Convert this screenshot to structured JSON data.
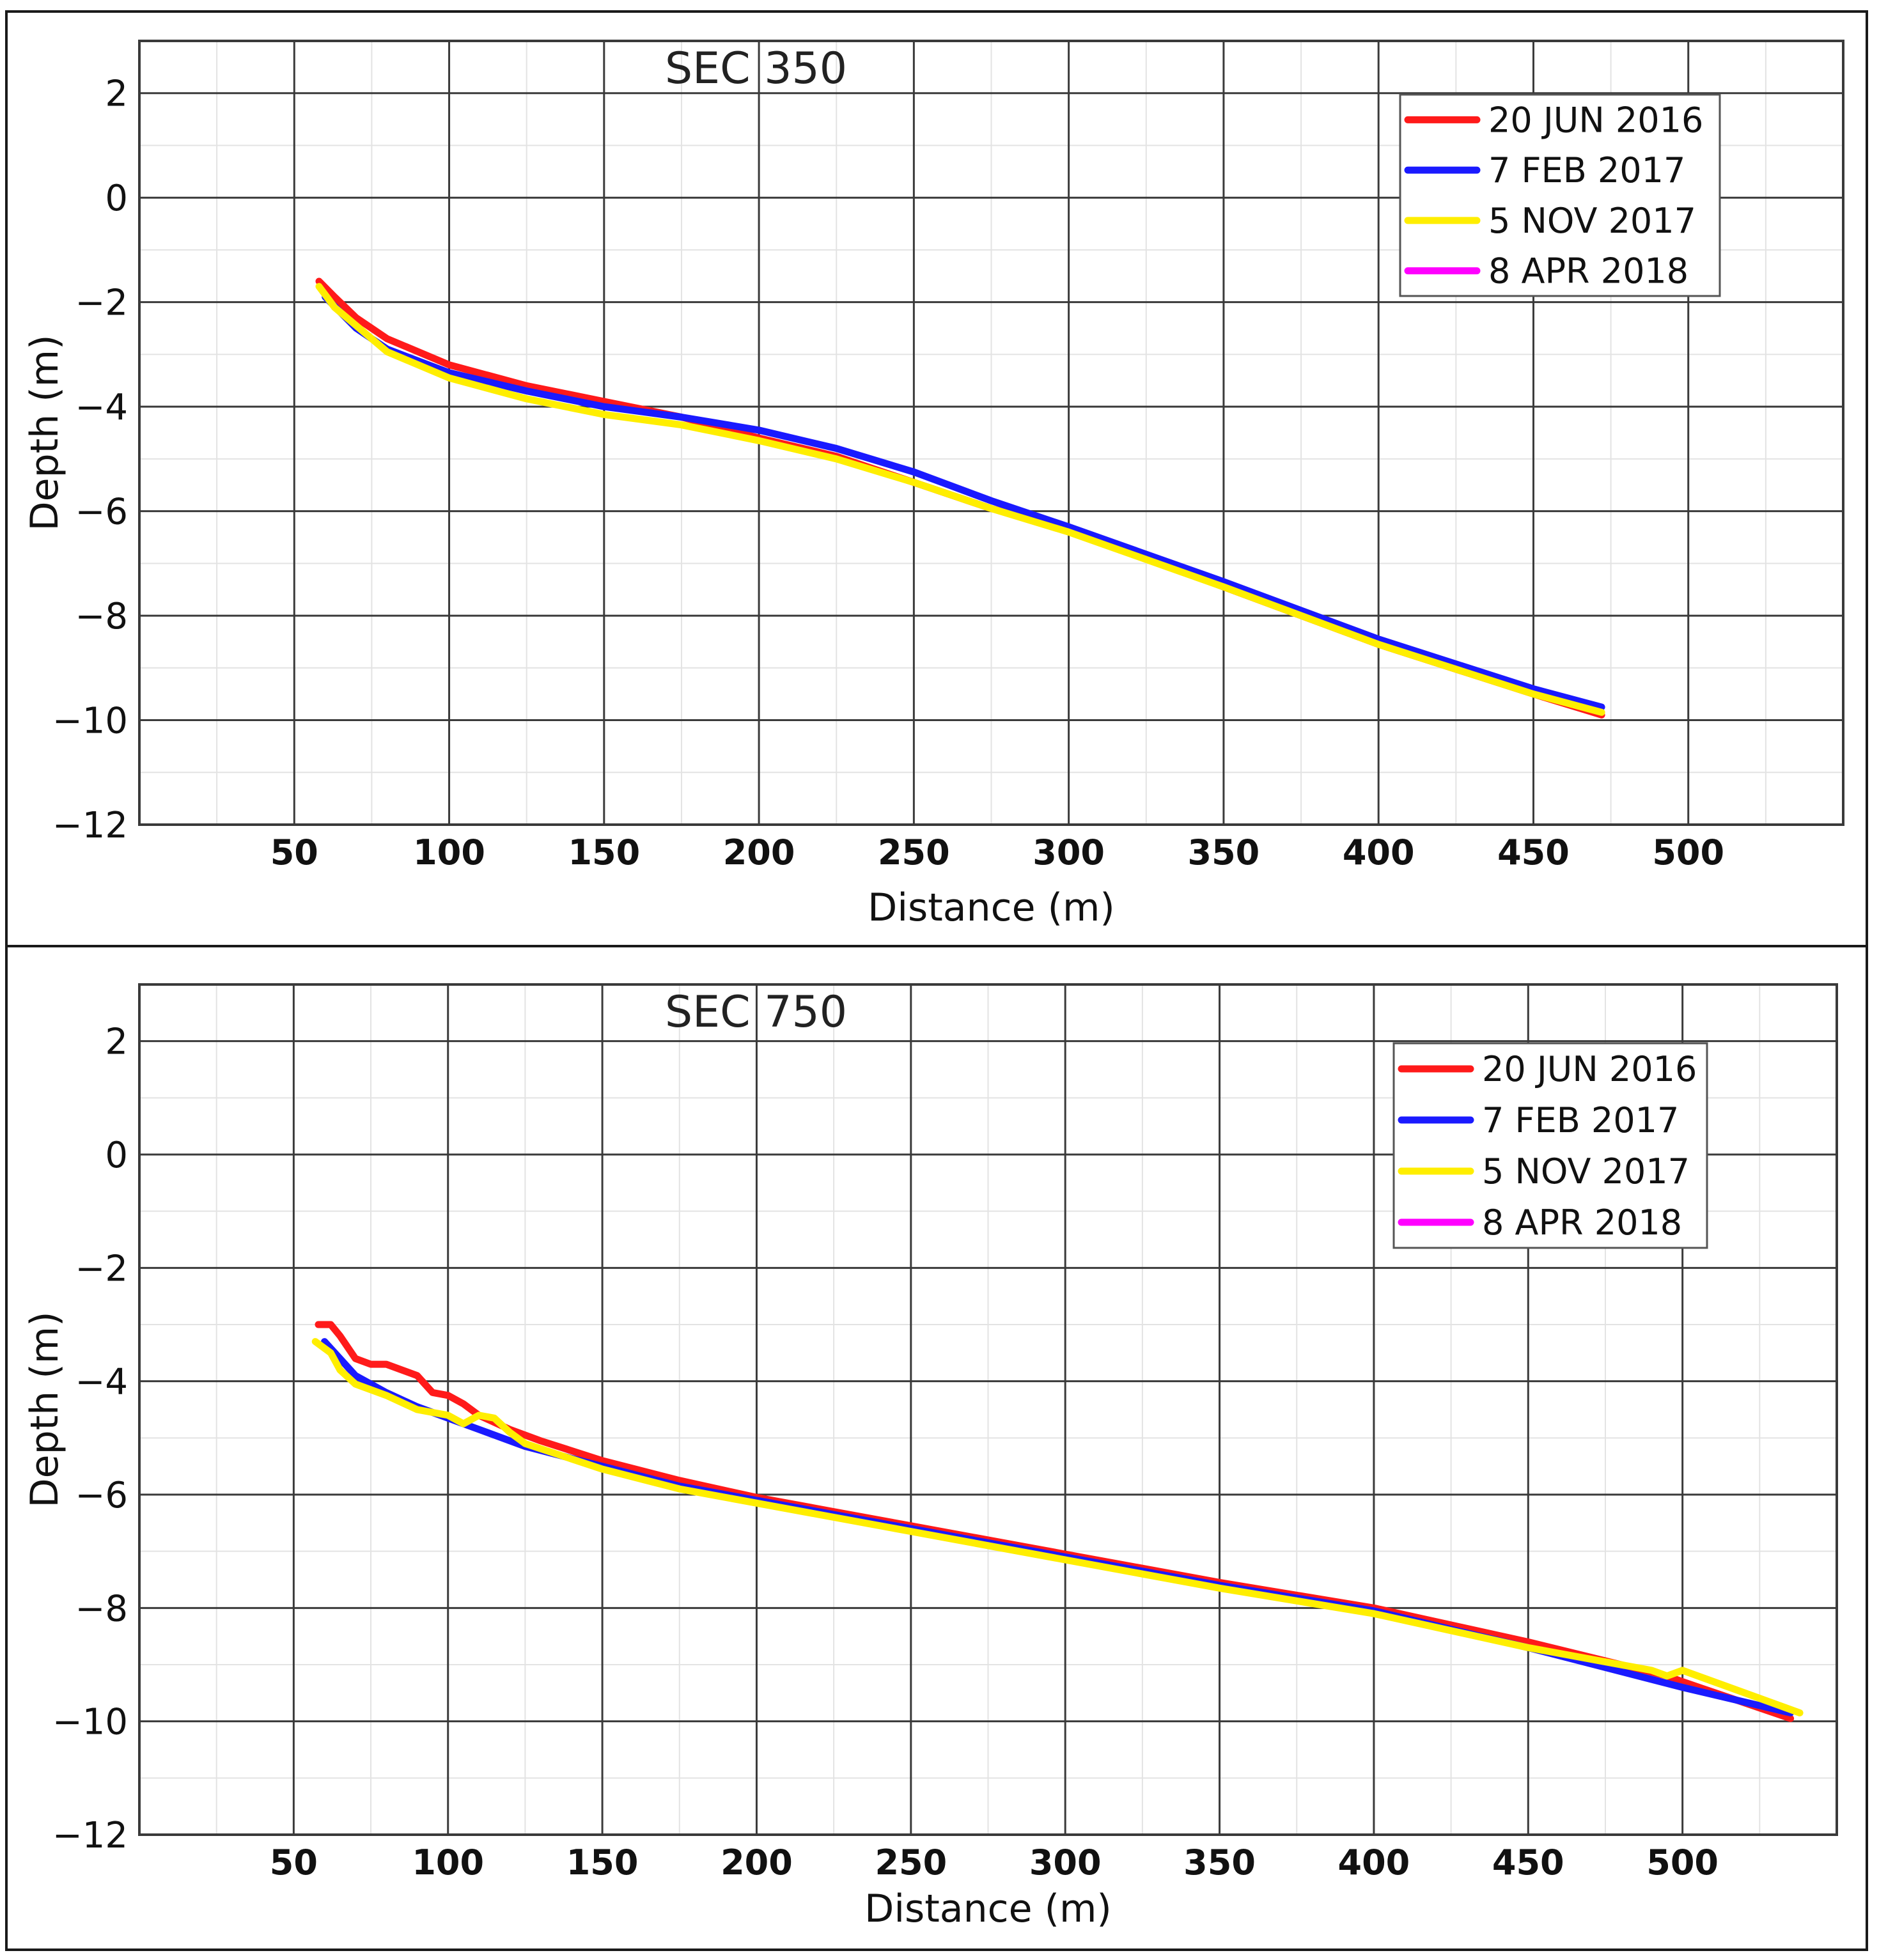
{
  "chart_data": [
    {
      "type": "line",
      "title": "SEC  350",
      "xlabel": "Distance (m)",
      "ylabel": "Depth (m)",
      "xlim": [
        0,
        550
      ],
      "ylim": [
        -12,
        3
      ],
      "xticks": [
        "50",
        "100",
        "150",
        "200",
        "250",
        "300",
        "350",
        "400",
        "450",
        "500"
      ],
      "yticks": [
        "2",
        "0",
        "−2",
        "−4",
        "−6",
        "−8",
        "−10",
        "−12"
      ],
      "grid": true,
      "legend_position": "top-right",
      "series": [
        {
          "name": "20 JUN 2016",
          "color": "#ff1a1a",
          "x": [
            58,
            63,
            70,
            80,
            100,
            125,
            150,
            175,
            200,
            225,
            250,
            275,
            300,
            350,
            400,
            450,
            472
          ],
          "y": [
            -1.6,
            -1.9,
            -2.3,
            -2.7,
            -3.2,
            -3.6,
            -3.9,
            -4.2,
            -4.6,
            -4.95,
            -5.45,
            -5.95,
            -6.35,
            -7.45,
            -8.55,
            -9.5,
            -9.9
          ]
        },
        {
          "name": "7 FEB 2017",
          "color": "#1a1aff",
          "x": [
            60,
            65,
            70,
            80,
            100,
            125,
            150,
            175,
            200,
            225,
            250,
            275,
            300,
            350,
            400,
            450,
            472
          ],
          "y": [
            -1.9,
            -2.2,
            -2.5,
            -2.9,
            -3.35,
            -3.7,
            -4.0,
            -4.2,
            -4.45,
            -4.8,
            -5.25,
            -5.8,
            -6.3,
            -7.35,
            -8.45,
            -9.4,
            -9.75
          ]
        },
        {
          "name": "5 NOV 2017",
          "color": "#ffee00",
          "x": [
            58,
            63,
            70,
            80,
            100,
            125,
            150,
            175,
            200,
            225,
            250,
            275,
            300,
            350,
            400,
            450,
            472
          ],
          "y": [
            -1.7,
            -2.1,
            -2.45,
            -2.95,
            -3.45,
            -3.85,
            -4.15,
            -4.35,
            -4.65,
            -5.0,
            -5.45,
            -5.95,
            -6.4,
            -7.45,
            -8.55,
            -9.5,
            -9.85
          ]
        },
        {
          "name": "8 APR 2018",
          "color": "#ff00ff",
          "x": [],
          "y": []
        }
      ]
    },
    {
      "type": "line",
      "title": "SEC  750",
      "xlabel": "Distance (m)",
      "ylabel": "Depth (m)",
      "xlim": [
        0,
        550
      ],
      "ylim": [
        -12,
        3
      ],
      "xticks": [
        "50",
        "100",
        "150",
        "200",
        "250",
        "300",
        "350",
        "400",
        "450",
        "500"
      ],
      "yticks": [
        "2",
        "0",
        "−2",
        "−4",
        "−6",
        "−8",
        "−10",
        "−12"
      ],
      "grid": true,
      "legend_position": "top-right",
      "series": [
        {
          "name": "20 JUN 2016",
          "color": "#ff1a1a",
          "x": [
            58,
            62,
            65,
            70,
            75,
            80,
            85,
            90,
            95,
            100,
            105,
            110,
            120,
            130,
            150,
            175,
            200,
            225,
            250,
            300,
            350,
            400,
            450,
            495,
            500,
            535
          ],
          "y": [
            -3.0,
            -3.0,
            -3.2,
            -3.6,
            -3.7,
            -3.7,
            -3.8,
            -3.9,
            -4.2,
            -4.25,
            -4.4,
            -4.6,
            -4.85,
            -5.05,
            -5.4,
            -5.75,
            -6.05,
            -6.3,
            -6.55,
            -7.05,
            -7.55,
            -8.0,
            -8.6,
            -9.2,
            -9.3,
            -9.95
          ]
        },
        {
          "name": "7 FEB 2017",
          "color": "#1a1aff",
          "x": [
            60,
            65,
            70,
            80,
            90,
            100,
            110,
            125,
            150,
            175,
            200,
            250,
            300,
            350,
            400,
            450,
            500,
            535
          ],
          "y": [
            -3.3,
            -3.6,
            -3.9,
            -4.2,
            -4.45,
            -4.65,
            -4.85,
            -5.15,
            -5.5,
            -5.85,
            -6.1,
            -6.6,
            -7.1,
            -7.6,
            -8.05,
            -8.7,
            -9.4,
            -9.85
          ]
        },
        {
          "name": "5 NOV 2017",
          "color": "#ffee00",
          "x": [
            57,
            62,
            65,
            70,
            80,
            90,
            100,
            105,
            110,
            115,
            120,
            125,
            150,
            175,
            200,
            250,
            300,
            350,
            400,
            450,
            490,
            495,
            500,
            538
          ],
          "y": [
            -3.3,
            -3.5,
            -3.8,
            -4.05,
            -4.25,
            -4.5,
            -4.6,
            -4.75,
            -4.6,
            -4.65,
            -4.9,
            -5.1,
            -5.55,
            -5.9,
            -6.15,
            -6.65,
            -7.15,
            -7.65,
            -8.1,
            -8.7,
            -9.1,
            -9.2,
            -9.1,
            -9.85
          ]
        },
        {
          "name": "8 APR 2018",
          "color": "#ff00ff",
          "x": [],
          "y": []
        }
      ]
    }
  ]
}
